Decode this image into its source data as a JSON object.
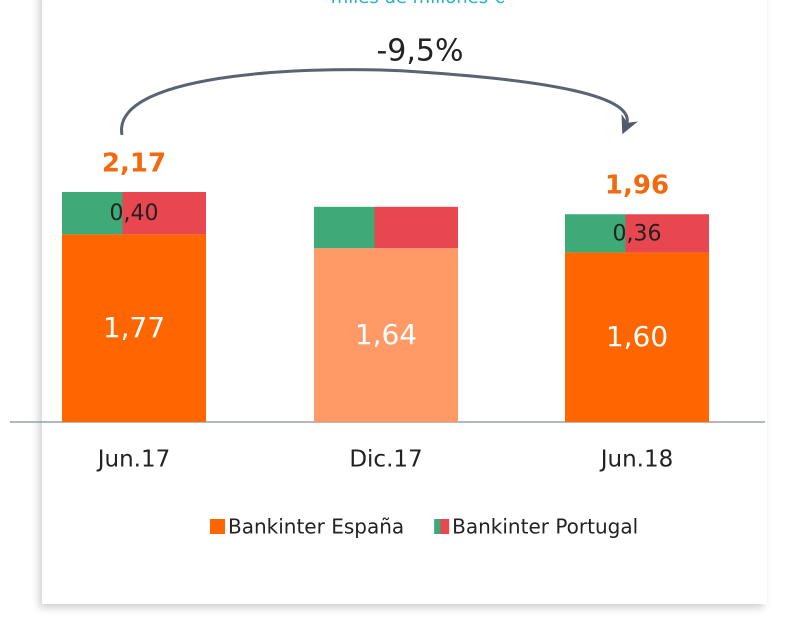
{
  "chart_data": {
    "type": "stacked_bar",
    "subtitle": "miles de millones €",
    "annotation": "-9,5%",
    "categories": [
      "Jun.17",
      "Dic.17",
      "Jun.18"
    ],
    "series": [
      {
        "name": "Bankinter España",
        "color": "#ff6600",
        "point_colors": [
          "#ff6600",
          "#ff9966",
          "#ff6600"
        ],
        "values": [
          1.77,
          1.64,
          1.6
        ],
        "value_labels": [
          "1,77",
          "1,64",
          "1,60"
        ]
      },
      {
        "name": "Bankinter Portugal",
        "color": [
          "#3daa77",
          "#e8474f"
        ],
        "values": [
          0.4,
          0.39,
          0.36
        ],
        "value_labels": [
          "0,40",
          null,
          "0,36"
        ]
      }
    ],
    "totals": [
      2.17,
      null,
      1.96
    ],
    "total_labels": [
      "2,17",
      null,
      "1,96"
    ],
    "ylim": [
      0,
      2.5
    ]
  }
}
